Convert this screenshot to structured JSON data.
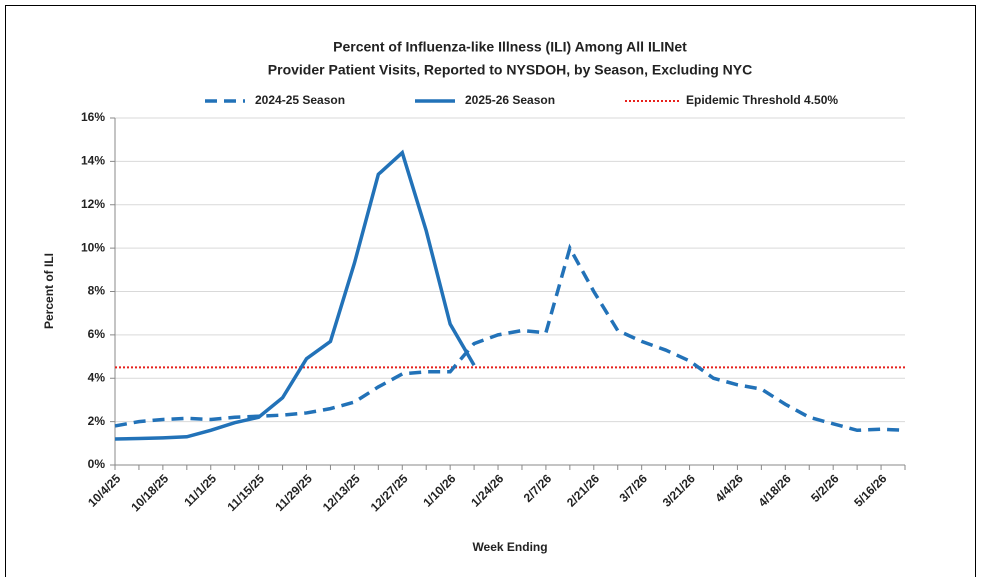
{
  "chart_data": {
    "type": "line",
    "title": [
      "Percent of Influenza-like Illness (ILI) Among All ILINet",
      "Provider Patient Visits, Reported to NYSDOH, by Season, Excluding NYC"
    ],
    "xlabel": "Week Ending",
    "ylabel": "Percent of ILI",
    "categories": [
      "10/4/25",
      null,
      "10/18/25",
      null,
      "11/1/25",
      null,
      "11/15/25",
      null,
      "11/29/25",
      null,
      "12/13/25",
      null,
      "12/27/25",
      null,
      "1/10/26",
      null,
      "1/24/26",
      null,
      "2/7/26",
      null,
      "2/21/26",
      null,
      "3/7/26",
      null,
      "3/21/26",
      null,
      "4/4/26",
      null,
      "4/18/26",
      null,
      "5/2/26",
      null,
      "5/16/26",
      null
    ],
    "series": [
      {
        "name": "2024-25 Season",
        "color": "#2272b8",
        "dash": "dashed",
        "values": [
          1.8,
          2.0,
          2.1,
          2.15,
          2.1,
          2.2,
          2.25,
          2.3,
          2.4,
          2.6,
          2.9,
          3.6,
          4.2,
          4.3,
          4.3,
          5.6,
          6.0,
          6.2,
          6.1,
          10.0,
          8.0,
          6.2,
          5.7,
          5.3,
          4.8,
          4.0,
          3.7,
          3.5,
          2.8,
          2.2,
          1.9,
          1.6,
          1.65,
          1.6
        ]
      },
      {
        "name": "2025-26 Season",
        "color": "#2272b8",
        "dash": "solid",
        "values": [
          1.2,
          1.22,
          1.25,
          1.3,
          1.6,
          1.95,
          2.2,
          3.1,
          4.9,
          5.7,
          9.3,
          13.4,
          14.4,
          10.8,
          6.5,
          4.6,
          null,
          null,
          null,
          null,
          null,
          null,
          null,
          null,
          null,
          null,
          null,
          null,
          null,
          null,
          null,
          null,
          null,
          null
        ]
      }
    ],
    "threshold": {
      "name": "Epidemic Threshold 4.50%",
      "value": 4.5,
      "color": "#e8201c"
    },
    "ylim": [
      0,
      16
    ],
    "yticks": [
      {
        "value": 0,
        "label": "0%"
      },
      {
        "value": 2,
        "label": "2%"
      },
      {
        "value": 4,
        "label": "4%"
      },
      {
        "value": 6,
        "label": "6%"
      },
      {
        "value": 8,
        "label": "8%"
      },
      {
        "value": 10,
        "label": "10%"
      },
      {
        "value": 12,
        "label": "12%"
      },
      {
        "value": 14,
        "label": "14%"
      },
      {
        "value": 16,
        "label": "16%"
      }
    ],
    "grid": true
  }
}
